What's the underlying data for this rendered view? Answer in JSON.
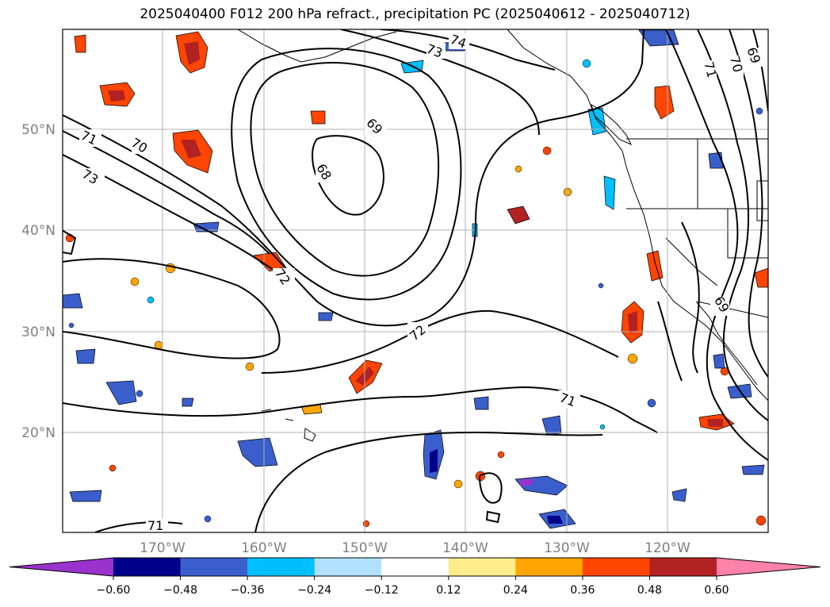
{
  "title": "2025040400 F012 200 hPa refract., precipitation PC (2025040612 - 2025040712)",
  "map": {
    "lat_labels": [
      "50°N",
      "40°N",
      "30°N",
      "20°N"
    ],
    "lon_labels": [
      "170°W",
      "160°W",
      "150°W",
      "140°W",
      "130°W",
      "120°W"
    ],
    "gridlines": true
  },
  "contour_labels": [
    "74",
    "73",
    "71",
    "70",
    "73",
    "69",
    "68",
    "70",
    "71",
    "69",
    "72",
    "72",
    "71",
    "71",
    "69"
  ],
  "colorbar": {
    "extend": "both",
    "colors": [
      "#9a32cd",
      "#00008b",
      "#3a5fcd",
      "#00bfff",
      "#b0e2ff",
      "#ffffff",
      "#ffec8b",
      "#ffa500",
      "#ff4500",
      "#b22222",
      "#ff82ab"
    ],
    "ticks": [
      "−0.60",
      "−0.48",
      "−0.36",
      "−0.24",
      "−0.12",
      "0.12",
      "0.24",
      "0.36",
      "0.48",
      "0.60"
    ]
  }
}
